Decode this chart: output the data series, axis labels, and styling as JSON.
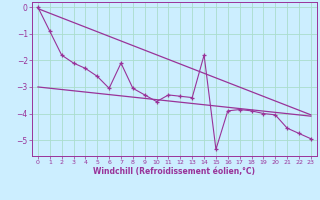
{
  "title": "",
  "xlabel": "Windchill (Refroidissement éolien,°C)",
  "ylabel": "",
  "bg_color": "#cceeff",
  "grid_color": "#aaddcc",
  "line_color": "#993399",
  "xlim": [
    -0.5,
    23.5
  ],
  "ylim": [
    -5.6,
    0.2
  ],
  "yticks": [
    0,
    -1,
    -2,
    -3,
    -4,
    -5
  ],
  "xticks": [
    0,
    1,
    2,
    3,
    4,
    5,
    6,
    7,
    8,
    9,
    10,
    11,
    12,
    13,
    14,
    15,
    16,
    17,
    18,
    19,
    20,
    21,
    22,
    23
  ],
  "zigzag_x": [
    0,
    1,
    2,
    3,
    4,
    5,
    6,
    7,
    8,
    9,
    10,
    11,
    12,
    13,
    14,
    15,
    16,
    17,
    18,
    19,
    20,
    21,
    22,
    23
  ],
  "zigzag_y": [
    0.0,
    -0.9,
    -1.8,
    -2.1,
    -2.3,
    -2.6,
    -3.05,
    -2.1,
    -3.05,
    -3.3,
    -3.55,
    -3.3,
    -3.35,
    -3.4,
    -1.8,
    -5.35,
    -3.9,
    -3.85,
    -3.9,
    -4.0,
    -4.05,
    -4.55,
    -4.75,
    -4.95
  ],
  "trend1_x": [
    0,
    23
  ],
  "trend1_y": [
    -3.0,
    -4.1
  ],
  "trend2_x": [
    0,
    23
  ],
  "trend2_y": [
    -0.05,
    -4.05
  ]
}
